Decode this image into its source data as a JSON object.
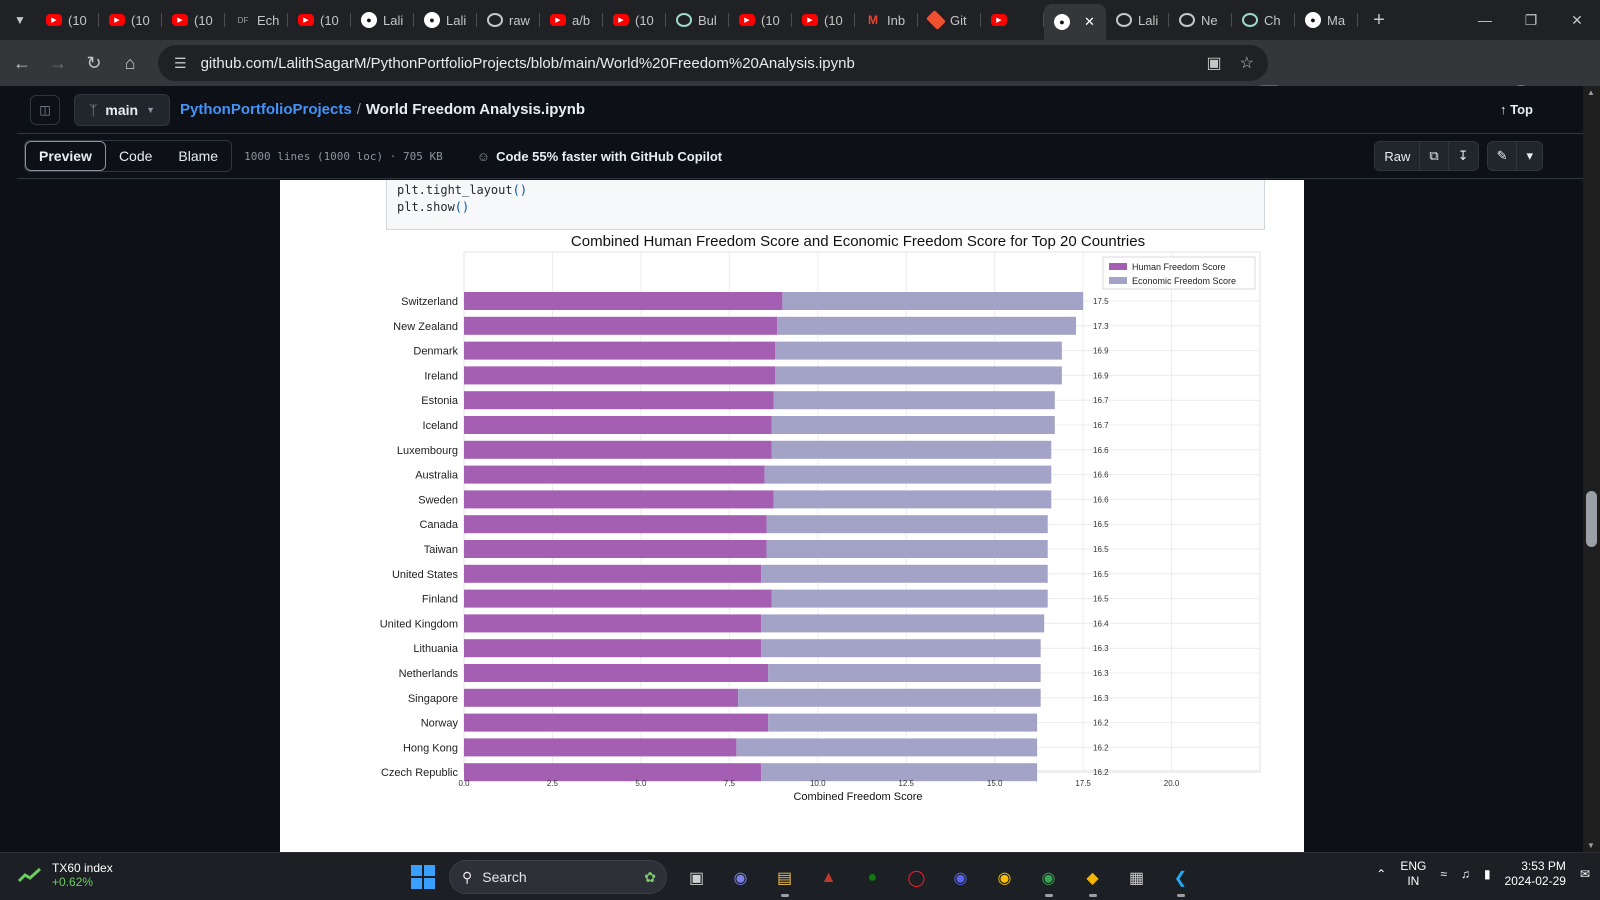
{
  "browser": {
    "tabs": [
      {
        "label": "(10",
        "icon": "youtube-icon"
      },
      {
        "label": "(10",
        "icon": "youtube-icon"
      },
      {
        "label": "(10",
        "icon": "youtube-icon"
      },
      {
        "label": "Ech",
        "icon": "df-icon"
      },
      {
        "label": "(10",
        "icon": "youtube-icon"
      },
      {
        "label": "Lali",
        "icon": "github-icon"
      },
      {
        "label": "Lali",
        "icon": "github-icon"
      },
      {
        "label": "raw",
        "icon": "globe-icon"
      },
      {
        "label": "a/b",
        "icon": "youtube-icon"
      },
      {
        "label": "(10",
        "icon": "youtube-icon"
      },
      {
        "label": "Bul",
        "icon": "chatgpt-icon"
      },
      {
        "label": "(10",
        "icon": "youtube-icon"
      },
      {
        "label": "(10",
        "icon": "youtube-icon"
      },
      {
        "label": "Inb",
        "icon": "gmail-icon"
      },
      {
        "label": "Git",
        "icon": "git-icon"
      },
      {
        "label": "",
        "icon": "youtube-icon"
      },
      {
        "label": "",
        "icon": "github-icon",
        "active": true
      },
      {
        "label": "Lali",
        "icon": "globe-icon"
      },
      {
        "label": "Ne",
        "icon": "globe-icon"
      },
      {
        "label": "Ch",
        "icon": "chatgpt-icon"
      },
      {
        "label": "Ma",
        "icon": "github-icon"
      }
    ],
    "url": "github.com/LalithSagarM/PythonPortfolioProjects/blob/main/World%20Freedom%20Analysis.ipynb"
  },
  "github": {
    "branch": "main",
    "repo": "PythonPortfolioProjects",
    "separator": "/",
    "file": "World Freedom Analysis.ipynb",
    "top_label": "Top",
    "view_tabs": [
      "Preview",
      "Code",
      "Blame"
    ],
    "file_info": "1000 lines (1000 loc) · 705 KB",
    "copilot": "Code 55% faster with GitHub Copilot",
    "raw_label": "Raw"
  },
  "code": {
    "line1_fn": "plt.tight_layout",
    "line1_paren": "()",
    "line2_fn": "plt.show",
    "line2_paren": "()"
  },
  "chart_data": {
    "type": "bar",
    "orientation": "horizontal",
    "stacked": true,
    "title": "Combined Human Freedom Score and Economic Freedom Score for Top 20 Countries",
    "xlabel": "Combined Freedom Score",
    "ylabel": "",
    "xlim": [
      0,
      22.5
    ],
    "xticks": [
      0.0,
      2.5,
      5.0,
      7.5,
      10.0,
      12.5,
      15.0,
      17.5,
      20.0
    ],
    "grid": true,
    "legend_position": "top-right",
    "categories": [
      "Switzerland",
      "New Zealand",
      "Denmark",
      "Ireland",
      "Estonia",
      "Iceland",
      "Luxembourg",
      "Australia",
      "Sweden",
      "Canada",
      "Taiwan",
      "United States",
      "Finland",
      "United Kingdom",
      "Lithuania",
      "Netherlands",
      "Singapore",
      "Norway",
      "Hong Kong",
      "Czech Republic"
    ],
    "series": [
      {
        "name": "Human Freedom Score",
        "color": "#a45eb2",
        "values": [
          9.0,
          8.85,
          8.8,
          8.8,
          8.75,
          8.7,
          8.7,
          8.5,
          8.75,
          8.55,
          8.55,
          8.4,
          8.7,
          8.4,
          8.4,
          8.6,
          7.75,
          8.6,
          7.7,
          8.4
        ]
      },
      {
        "name": "Economic Freedom Score",
        "color": "#a3a3c8",
        "values": [
          8.5,
          8.45,
          8.1,
          8.1,
          7.95,
          8.0,
          7.9,
          8.1,
          7.85,
          7.95,
          7.95,
          8.1,
          7.8,
          8.0,
          7.9,
          7.7,
          8.55,
          7.6,
          8.5,
          7.8
        ]
      }
    ],
    "totals_labels": [
      "17.5",
      "17.3",
      "16.9",
      "16.9",
      "16.7",
      "16.7",
      "16.6",
      "16.6",
      "16.6",
      "16.5",
      "16.5",
      "16.5",
      "16.5",
      "16.4",
      "16.3",
      "16.3",
      "16.3",
      "16.2",
      "16.2",
      "16.2"
    ]
  },
  "taskbar": {
    "ticker_name": "TX60 index",
    "ticker_change": "+0.62%",
    "search_label": "Search",
    "lang_line1": "ENG",
    "lang_line2": "IN",
    "time": "3:53 PM",
    "date": "2024-02-29"
  }
}
